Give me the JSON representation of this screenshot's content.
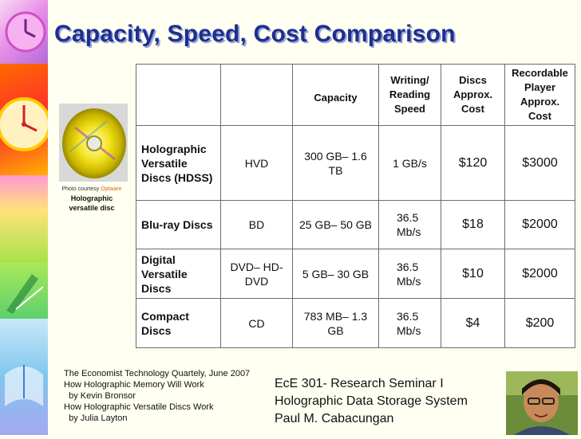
{
  "slide": {
    "title": "Capacity, Speed, Cost Comparison"
  },
  "photo": {
    "credit_prefix": "Photo courtesy ",
    "credit_link": "Optware",
    "caption_line1": "Holographic",
    "caption_line2": "versatile disc"
  },
  "table": {
    "headers": [
      "",
      "",
      "Capacity",
      "Writing/ Reading Speed",
      "Discs Approx. Cost",
      "Recordable Player Approx. Cost"
    ],
    "rows": [
      {
        "name": "Holographic Versatile Discs (HDSS)",
        "abbr": "HVD",
        "capacity": "300 GB– 1.6 TB",
        "speed": "1 GB/s",
        "disc_cost": "$120",
        "player_cost": "$3000"
      },
      {
        "name": "Blu-ray Discs",
        "abbr": "BD",
        "capacity": "25 GB– 50 GB",
        "speed": "36.5 Mb/s",
        "disc_cost": "$18",
        "player_cost": "$2000"
      },
      {
        "name": "Digital Versatile Discs",
        "abbr": "DVD– HD-DVD",
        "capacity": "5 GB– 30 GB",
        "speed": "36.5 Mb/s",
        "disc_cost": "$10",
        "player_cost": "$2000"
      },
      {
        "name": "Compact Discs",
        "abbr": "CD",
        "capacity": "783 MB– 1.3 GB",
        "speed": "36.5 Mb/s",
        "disc_cost": "$4",
        "player_cost": "$200"
      }
    ]
  },
  "references": [
    "The Economist Technology Quartely, June 2007",
    "How Holographic Memory Will Work",
    "  by Kevin Bronsor",
    "How Holographic Versatile Discs Work",
    "  by Julia Layton"
  ],
  "course": {
    "line1": "EcE 301- Research Seminar I",
    "line2": "Holographic Data Storage System",
    "line3": "Paul M. Cabacungan"
  },
  "colors": {
    "title": "#1d2f8f",
    "background": "#fffff2",
    "credit_link": "#e0661c"
  }
}
